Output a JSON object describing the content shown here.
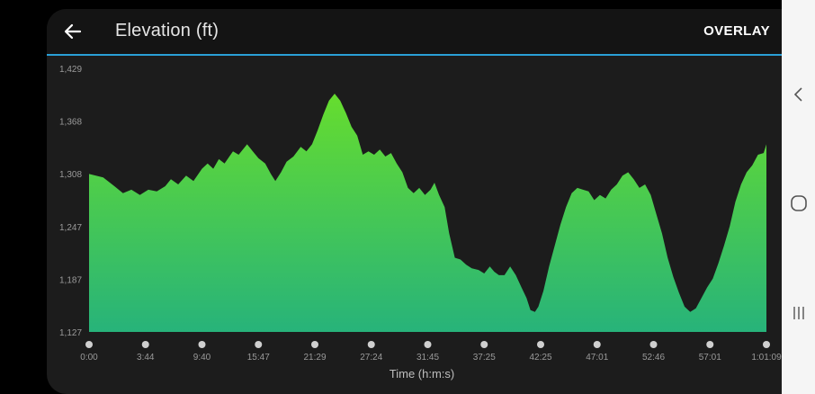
{
  "header": {
    "title": "Elevation (ft)",
    "overlay_label": "OVERLAY",
    "back_icon": "arrow-left-icon"
  },
  "colors": {
    "accent_line": "#2a9fd6",
    "fill_top": "#66dd2e",
    "fill_bottom": "#27b37a",
    "background": "#1c1c1c"
  },
  "chart_data": {
    "type": "area",
    "xlabel": "Time (h:m:s)",
    "ylabel": "",
    "x_tick_labels": [
      "0:00",
      "3:44",
      "9:40",
      "15:47",
      "21:29",
      "27:24",
      "31:45",
      "37:25",
      "42:25",
      "47:01",
      "52:46",
      "57:01",
      "1:01:09"
    ],
    "y_tick_labels": [
      "1,127",
      "1,187",
      "1,247",
      "1,308",
      "1,368",
      "1,429"
    ],
    "ylim": [
      1127,
      1429
    ],
    "x_range_tick_index": [
      0,
      12
    ],
    "grid": false,
    "series": [
      {
        "points": [
          [
            0.0,
            1308
          ],
          [
            0.25,
            1304
          ],
          [
            0.45,
            1294
          ],
          [
            0.6,
            1286
          ],
          [
            0.75,
            1290
          ],
          [
            0.9,
            1284
          ],
          [
            1.05,
            1290
          ],
          [
            1.2,
            1288
          ],
          [
            1.35,
            1294
          ],
          [
            1.45,
            1302
          ],
          [
            1.58,
            1296
          ],
          [
            1.72,
            1306
          ],
          [
            1.85,
            1300
          ],
          [
            2.0,
            1314
          ],
          [
            2.1,
            1320
          ],
          [
            2.2,
            1314
          ],
          [
            2.3,
            1325
          ],
          [
            2.4,
            1320
          ],
          [
            2.55,
            1334
          ],
          [
            2.65,
            1330
          ],
          [
            2.8,
            1342
          ],
          [
            2.9,
            1334
          ],
          [
            3.0,
            1326
          ],
          [
            3.12,
            1320
          ],
          [
            3.22,
            1308
          ],
          [
            3.3,
            1300
          ],
          [
            3.4,
            1310
          ],
          [
            3.5,
            1322
          ],
          [
            3.62,
            1328
          ],
          [
            3.75,
            1339
          ],
          [
            3.85,
            1334
          ],
          [
            3.95,
            1342
          ],
          [
            4.05,
            1358
          ],
          [
            4.15,
            1376
          ],
          [
            4.25,
            1392
          ],
          [
            4.35,
            1400
          ],
          [
            4.45,
            1392
          ],
          [
            4.55,
            1378
          ],
          [
            4.65,
            1362
          ],
          [
            4.75,
            1352
          ],
          [
            4.85,
            1330
          ],
          [
            4.95,
            1334
          ],
          [
            5.05,
            1330
          ],
          [
            5.15,
            1336
          ],
          [
            5.25,
            1328
          ],
          [
            5.35,
            1332
          ],
          [
            5.45,
            1320
          ],
          [
            5.55,
            1310
          ],
          [
            5.65,
            1292
          ],
          [
            5.75,
            1286
          ],
          [
            5.85,
            1292
          ],
          [
            5.95,
            1284
          ],
          [
            6.05,
            1290
          ],
          [
            6.12,
            1298
          ],
          [
            6.2,
            1284
          ],
          [
            6.3,
            1270
          ],
          [
            6.38,
            1240
          ],
          [
            6.48,
            1212
          ],
          [
            6.58,
            1210
          ],
          [
            6.68,
            1204
          ],
          [
            6.78,
            1200
          ],
          [
            6.9,
            1198
          ],
          [
            7.0,
            1194
          ],
          [
            7.1,
            1202
          ],
          [
            7.18,
            1196
          ],
          [
            7.26,
            1192
          ],
          [
            7.36,
            1192
          ],
          [
            7.46,
            1202
          ],
          [
            7.56,
            1192
          ],
          [
            7.66,
            1178
          ],
          [
            7.75,
            1166
          ],
          [
            7.82,
            1152
          ],
          [
            7.9,
            1150
          ],
          [
            7.96,
            1156
          ],
          [
            8.05,
            1174
          ],
          [
            8.15,
            1202
          ],
          [
            8.25,
            1226
          ],
          [
            8.35,
            1250
          ],
          [
            8.45,
            1270
          ],
          [
            8.55,
            1286
          ],
          [
            8.65,
            1292
          ],
          [
            8.75,
            1290
          ],
          [
            8.85,
            1288
          ],
          [
            8.95,
            1278
          ],
          [
            9.05,
            1284
          ],
          [
            9.15,
            1280
          ],
          [
            9.25,
            1290
          ],
          [
            9.35,
            1296
          ],
          [
            9.45,
            1306
          ],
          [
            9.55,
            1310
          ],
          [
            9.65,
            1302
          ],
          [
            9.75,
            1292
          ],
          [
            9.85,
            1296
          ],
          [
            9.95,
            1284
          ],
          [
            10.05,
            1262
          ],
          [
            10.15,
            1240
          ],
          [
            10.25,
            1212
          ],
          [
            10.35,
            1190
          ],
          [
            10.45,
            1172
          ],
          [
            10.55,
            1156
          ],
          [
            10.65,
            1150
          ],
          [
            10.75,
            1154
          ],
          [
            10.85,
            1166
          ],
          [
            10.95,
            1178
          ],
          [
            11.05,
            1188
          ],
          [
            11.15,
            1206
          ],
          [
            11.25,
            1226
          ],
          [
            11.35,
            1248
          ],
          [
            11.45,
            1276
          ],
          [
            11.55,
            1296
          ],
          [
            11.65,
            1310
          ],
          [
            11.75,
            1318
          ],
          [
            11.85,
            1330
          ],
          [
            11.95,
            1332
          ],
          [
            12.0,
            1342
          ]
        ]
      }
    ]
  },
  "navigation_bar": {
    "back_icon": "nav-back-chevron-icon",
    "home_icon": "nav-home-circle-icon",
    "recents_icon": "nav-recents-icon"
  }
}
